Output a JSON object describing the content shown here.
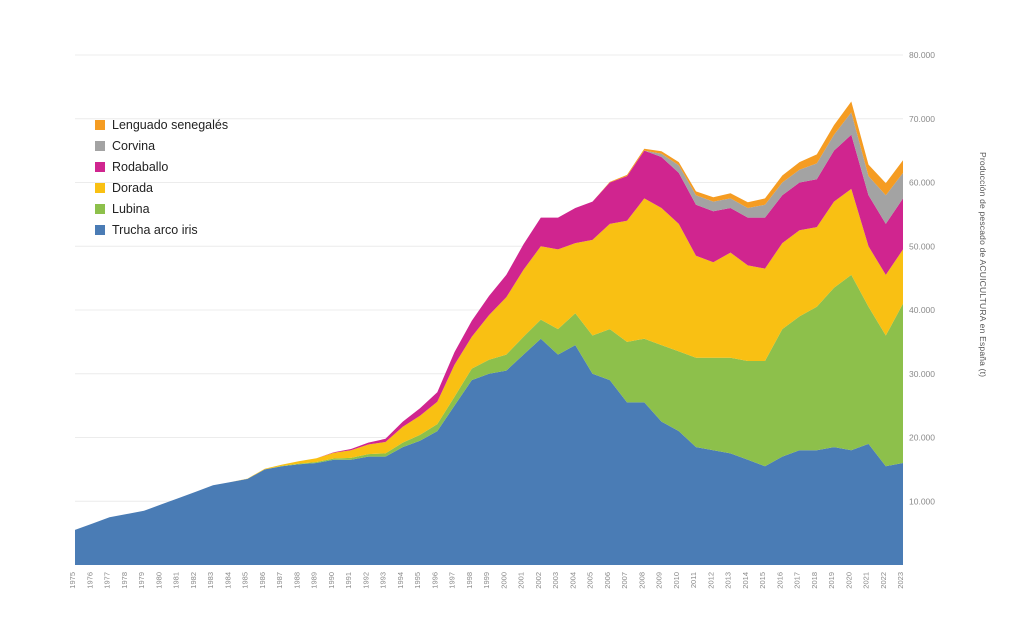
{
  "chart_data": {
    "type": "area",
    "stacked": true,
    "title": "",
    "ylabel": "Producción de pescado de ACUICULTURA en España (t)",
    "ylim": [
      0,
      80000
    ],
    "grid": true,
    "legend_position": "top-left",
    "y_ticks": [
      {
        "value": 10000,
        "label": "10.000"
      },
      {
        "value": 20000,
        "label": "20.000"
      },
      {
        "value": 30000,
        "label": "30.000"
      },
      {
        "value": 40000,
        "label": "40.000"
      },
      {
        "value": 50000,
        "label": "50.000"
      },
      {
        "value": 60000,
        "label": "60.000"
      },
      {
        "value": 70000,
        "label": "70.000"
      },
      {
        "value": 80000,
        "label": "80.000"
      }
    ],
    "years": [
      1975,
      1976,
      1977,
      1978,
      1979,
      1980,
      1981,
      1982,
      1983,
      1984,
      1985,
      1986,
      1987,
      1988,
      1989,
      1990,
      1991,
      1992,
      1993,
      1994,
      1995,
      1996,
      1997,
      1998,
      1999,
      2000,
      2001,
      2002,
      2003,
      2004,
      2005,
      2006,
      2007,
      2008,
      2009,
      2010,
      2011,
      2012,
      2013,
      2014,
      2015,
      2016,
      2017,
      2018,
      2019,
      2020,
      2021,
      2022,
      2023
    ],
    "series": [
      {
        "name": "Trucha arco iris",
        "color": "#4a7cb5",
        "values": [
          5500,
          6500,
          7500,
          8000,
          8500,
          9500,
          10500,
          11500,
          12500,
          13000,
          13500,
          15000,
          15500,
          15800,
          16000,
          16500,
          16500,
          17000,
          17000,
          18500,
          19500,
          21000,
          25000,
          29000,
          30000,
          30500,
          33000,
          35500,
          33000,
          34500,
          30000,
          29000,
          25500,
          25500,
          22500,
          21000,
          18500,
          18000,
          17500,
          16500,
          15500,
          17000,
          18000,
          18000,
          18500,
          18000,
          19000,
          15500,
          16000
        ]
      },
      {
        "name": "Lubina",
        "color": "#8dc04b",
        "values": [
          0,
          0,
          0,
          0,
          0,
          0,
          0,
          0,
          0,
          0,
          0,
          0,
          50,
          100,
          150,
          200,
          300,
          400,
          500,
          700,
          900,
          1100,
          1400,
          1800,
          2200,
          2500,
          2800,
          3000,
          4000,
          5000,
          6000,
          8000,
          9500,
          10000,
          12000,
          12500,
          14000,
          14500,
          15000,
          15500,
          16500,
          20000,
          21000,
          22500,
          25000,
          27500,
          21500,
          20500,
          25000
        ]
      },
      {
        "name": "Dorada",
        "color": "#f9c013",
        "values": [
          0,
          0,
          0,
          0,
          0,
          0,
          0,
          0,
          0,
          0,
          50,
          100,
          200,
          400,
          600,
          900,
          1200,
          1500,
          1800,
          2500,
          3000,
          3500,
          5000,
          5000,
          7000,
          9000,
          10500,
          11500,
          12500,
          11000,
          15000,
          16500,
          19000,
          22000,
          21500,
          20000,
          16000,
          15000,
          16500,
          15000,
          14500,
          13500,
          13500,
          12500,
          13500,
          13500,
          9500,
          9500,
          8500
        ]
      },
      {
        "name": "Rodaballo",
        "color": "#d0258f",
        "values": [
          0,
          0,
          0,
          0,
          0,
          0,
          0,
          0,
          0,
          0,
          0,
          0,
          0,
          0,
          0,
          100,
          200,
          300,
          500,
          800,
          1200,
          1500,
          2000,
          2500,
          3000,
          3500,
          4000,
          4500,
          5000,
          5500,
          6000,
          6500,
          7000,
          7500,
          8000,
          8000,
          8000,
          8000,
          7000,
          7500,
          8000,
          7500,
          7500,
          7500,
          8000,
          8500,
          8000,
          8000,
          8000
        ]
      },
      {
        "name": "Corvina",
        "color": "#a3a3a3",
        "values": [
          0,
          0,
          0,
          0,
          0,
          0,
          0,
          0,
          0,
          0,
          0,
          0,
          0,
          0,
          0,
          0,
          0,
          0,
          0,
          0,
          0,
          0,
          0,
          0,
          0,
          0,
          0,
          0,
          0,
          0,
          0,
          0,
          0,
          0,
          500,
          1200,
          1500,
          1500,
          1500,
          1500,
          2000,
          2000,
          2000,
          2500,
          2500,
          3500,
          3000,
          4500,
          4000
        ]
      },
      {
        "name": "Lenguado senegalés",
        "color": "#f59c22",
        "values": [
          0,
          0,
          0,
          0,
          0,
          0,
          0,
          0,
          0,
          0,
          0,
          0,
          0,
          0,
          0,
          0,
          0,
          0,
          0,
          0,
          0,
          0,
          0,
          0,
          0,
          0,
          0,
          0,
          0,
          0,
          0,
          100,
          200,
          300,
          400,
          500,
          600,
          700,
          800,
          900,
          1000,
          1100,
          1200,
          1400,
          1500,
          1700,
          1800,
          1900,
          2000
        ]
      }
    ],
    "legend": [
      "Lenguado senegalés",
      "Corvina",
      "Rodaballo",
      "Dorada",
      "Lubina",
      "Trucha arco iris"
    ]
  }
}
